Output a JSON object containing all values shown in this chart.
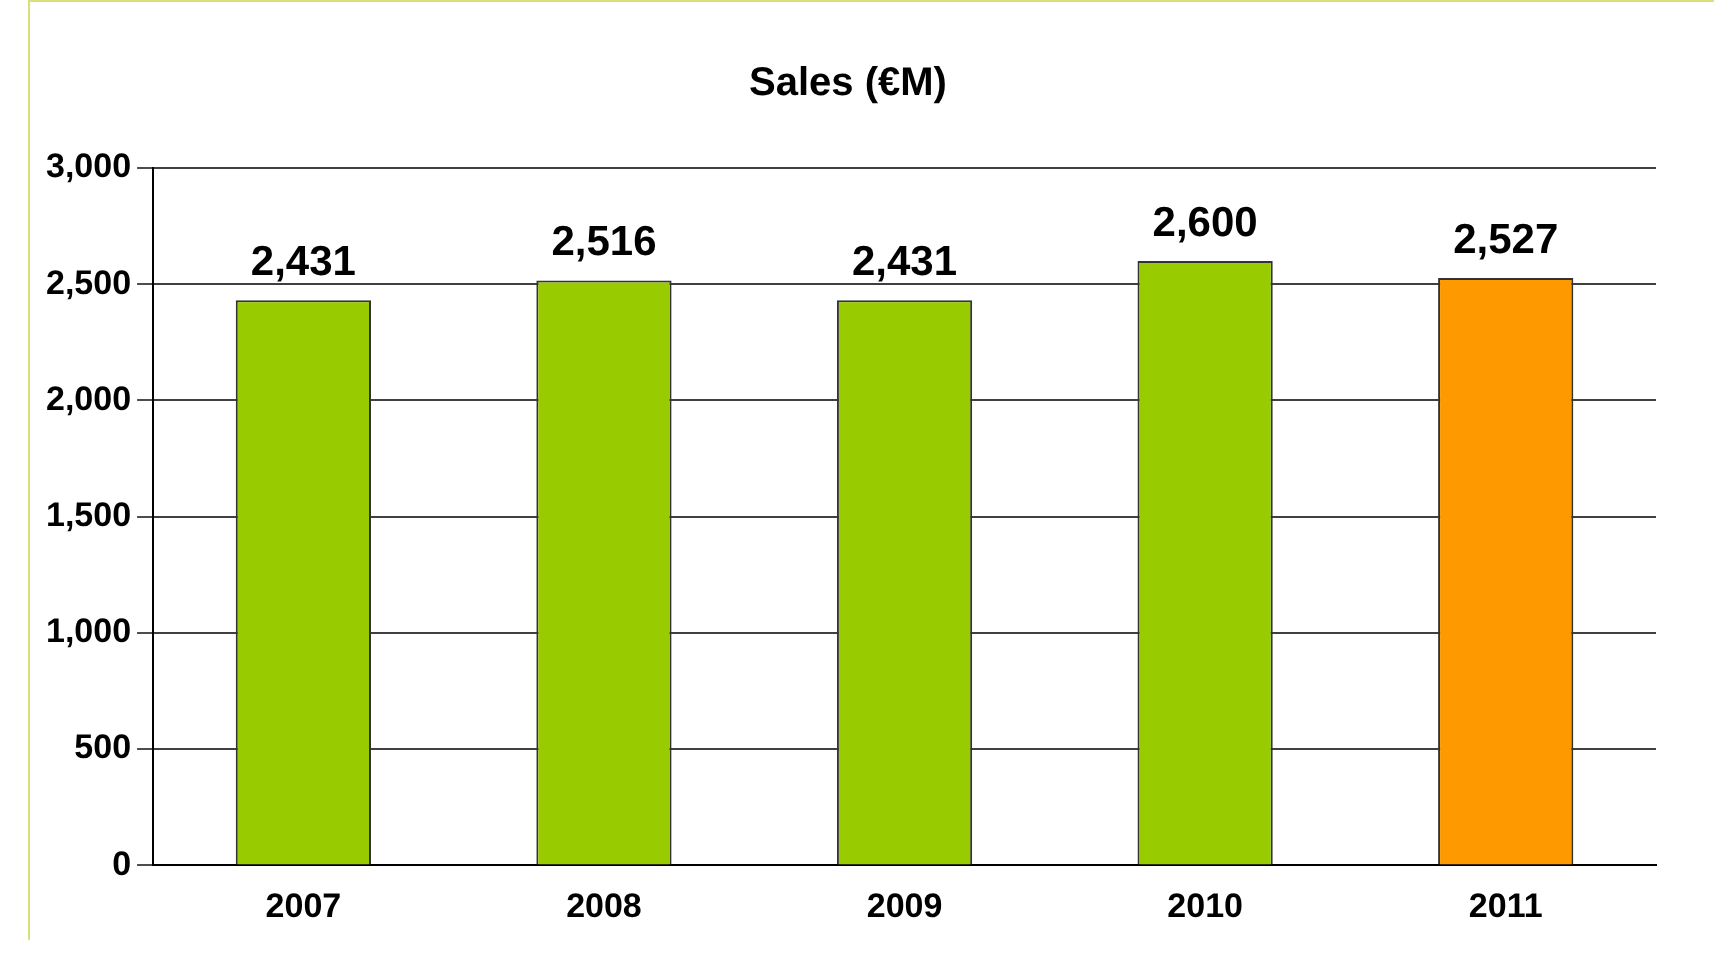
{
  "chart_data": {
    "type": "bar",
    "title": "Sales (€M)",
    "categories": [
      "2007",
      "2008",
      "2009",
      "2010",
      "2011"
    ],
    "values": [
      2431,
      2516,
      2431,
      2600,
      2527
    ],
    "colors": [
      "#99cc00",
      "#99cc00",
      "#99cc00",
      "#99cc00",
      "#ff9900"
    ],
    "value_labels": [
      "2,431",
      "2,516",
      "2,431",
      "2,600",
      "2,527"
    ],
    "ylim": [
      0,
      3000
    ],
    "yticks": [
      {
        "value": 0,
        "label": "0"
      },
      {
        "value": 500,
        "label": "500"
      },
      {
        "value": 1000,
        "label": "1,000"
      },
      {
        "value": 1500,
        "label": "1,500"
      },
      {
        "value": 2000,
        "label": "2,000"
      },
      {
        "value": 2500,
        "label": "2,500"
      },
      {
        "value": 3000,
        "label": "3,000"
      }
    ],
    "grid": "y"
  }
}
